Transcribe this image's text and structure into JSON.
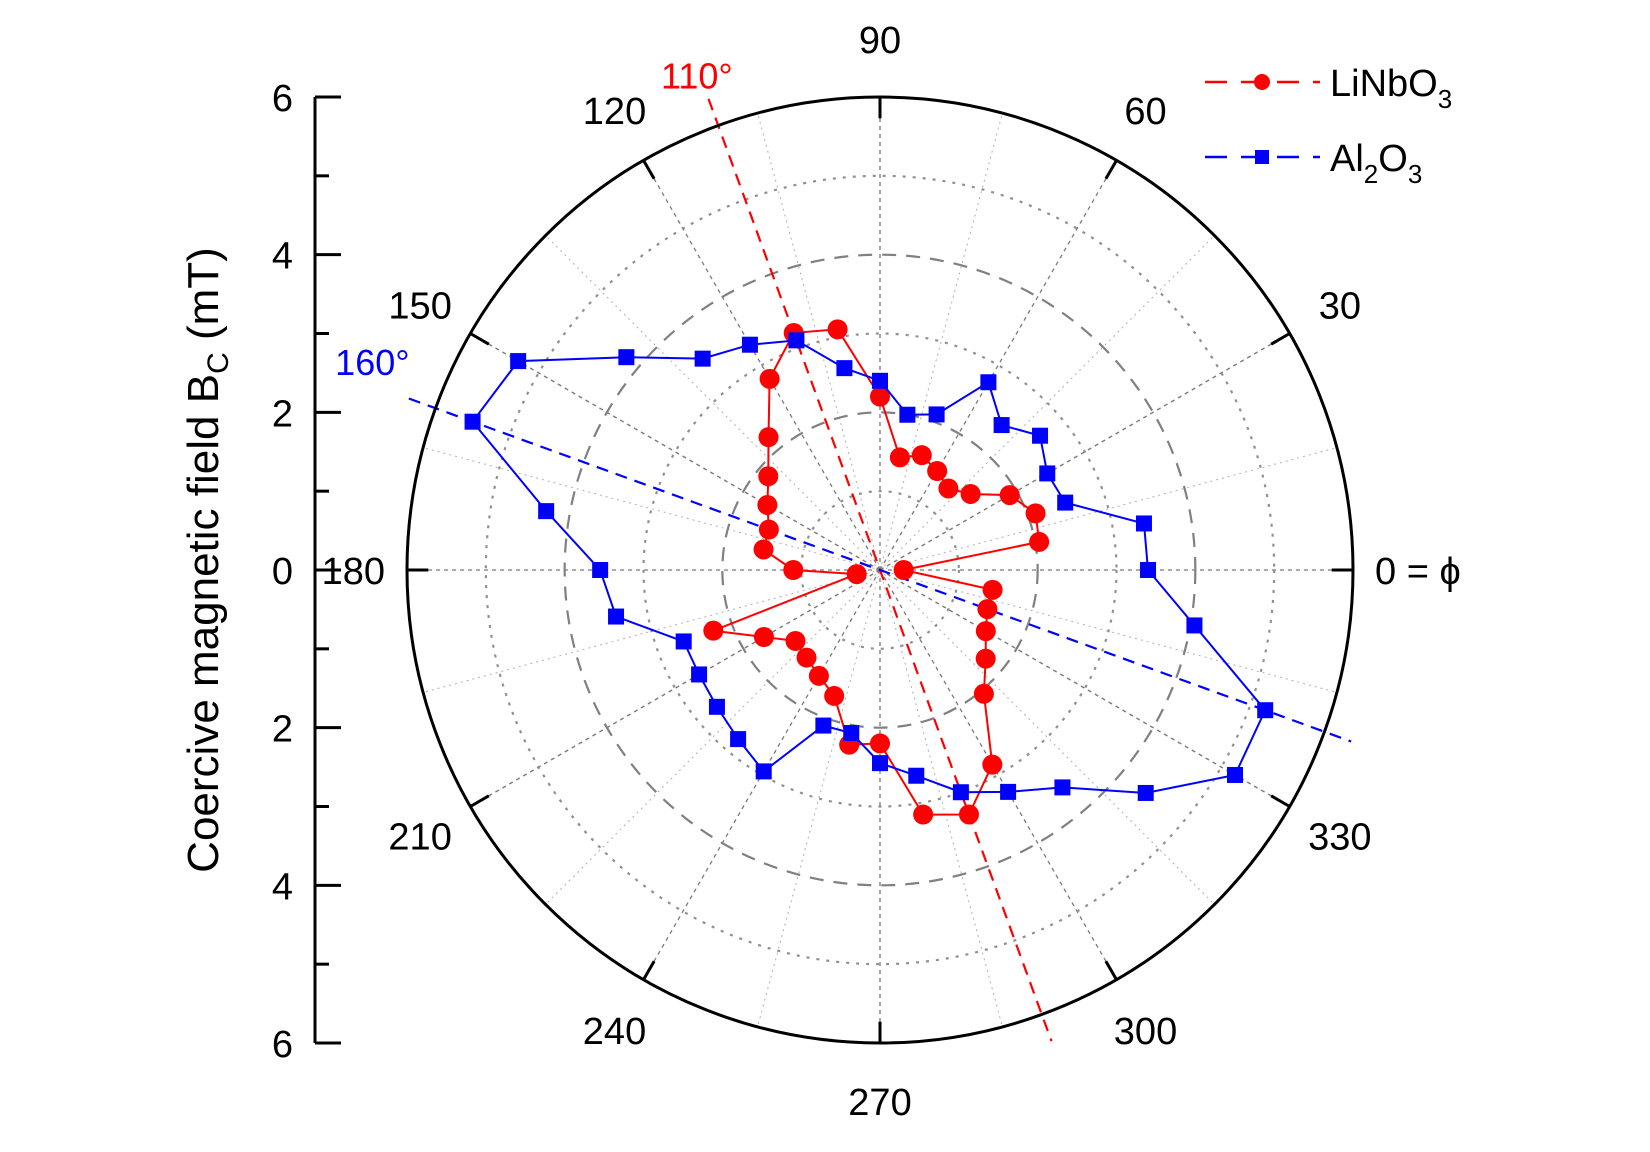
{
  "chart_data": {
    "type": "polar-scatter-line",
    "radial_axis": {
      "label_main": "Coercive magnetic field B",
      "label_sub": "C",
      "label_unit": " (mT)",
      "range": [
        0,
        6
      ],
      "ticks": [
        "6",
        "4",
        "2",
        "0",
        "2",
        "4",
        "6"
      ],
      "ring_values": [
        1,
        2,
        3,
        4,
        5
      ]
    },
    "angular_axis": {
      "labels": [
        {
          "angle": 0,
          "text": "0 = ϕ"
        },
        {
          "angle": 30,
          "text": "30"
        },
        {
          "angle": 60,
          "text": "60"
        },
        {
          "angle": 90,
          "text": "90"
        },
        {
          "angle": 120,
          "text": "120"
        },
        {
          "angle": 150,
          "text": "150"
        },
        {
          "angle": 180,
          "text": "180"
        },
        {
          "angle": 210,
          "text": "210"
        },
        {
          "angle": 240,
          "text": "240"
        },
        {
          "angle": 270,
          "text": "270"
        },
        {
          "angle": 300,
          "text": "300"
        },
        {
          "angle": 330,
          "text": "330"
        }
      ],
      "spoke_step_deg": 15
    },
    "grid": true,
    "legend": {
      "placement": "top-right",
      "entries": [
        {
          "main": "LiNbO",
          "sub": "3",
          "tail": "",
          "color": "#ff0000",
          "marker": "circle"
        },
        {
          "main": "Al",
          "sub": "2",
          "tail": "O",
          "sub2": "3",
          "color": "#0000ff",
          "marker": "square"
        }
      ]
    },
    "annotations": [
      {
        "text": "110°",
        "angle": 110,
        "color": "#ff0000"
      },
      {
        "text": "160°",
        "angle": 160,
        "color": "#0000ff"
      }
    ],
    "series": [
      {
        "name": "LiNbO3",
        "color": "#ff0000",
        "marker": "circle",
        "points": [
          [
            0,
            0.3
          ],
          [
            10,
            2.05
          ],
          [
            20,
            2.1
          ],
          [
            30,
            1.9
          ],
          [
            40,
            1.5
          ],
          [
            50,
            1.35
          ],
          [
            60,
            1.45
          ],
          [
            70,
            1.55
          ],
          [
            80,
            1.45
          ],
          [
            90,
            2.2
          ],
          [
            100,
            3.1
          ],
          [
            110,
            3.2
          ],
          [
            120,
            2.8
          ],
          [
            130,
            2.2
          ],
          [
            140,
            1.85
          ],
          [
            150,
            1.65
          ],
          [
            160,
            1.5
          ],
          [
            170,
            1.5
          ],
          [
            180,
            1.1
          ],
          [
            190,
            0.3
          ],
          [
            200,
            2.25
          ],
          [
            210,
            1.7
          ],
          [
            220,
            1.4
          ],
          [
            230,
            1.45
          ],
          [
            240,
            1.55
          ],
          [
            250,
            1.7
          ],
          [
            260,
            2.25
          ],
          [
            270,
            2.2
          ],
          [
            280,
            3.15
          ],
          [
            290,
            3.3
          ],
          [
            300,
            2.85
          ],
          [
            310,
            2.05
          ],
          [
            320,
            1.75
          ],
          [
            330,
            1.55
          ],
          [
            340,
            1.45
          ],
          [
            350,
            1.45
          ]
        ]
      },
      {
        "name": "Al2O3",
        "color": "#0000ff",
        "marker": "square",
        "points": [
          [
            0,
            3.4
          ],
          [
            10,
            3.4
          ],
          [
            20,
            2.5
          ],
          [
            30,
            2.45
          ],
          [
            40,
            2.65
          ],
          [
            50,
            2.4
          ],
          [
            60,
            2.75
          ],
          [
            70,
            2.1
          ],
          [
            80,
            2.0
          ],
          [
            90,
            2.4
          ],
          [
            100,
            2.6
          ],
          [
            110,
            3.1
          ],
          [
            120,
            3.3
          ],
          [
            130,
            3.5
          ],
          [
            140,
            4.2
          ],
          [
            150,
            5.3
          ],
          [
            160,
            5.5
          ],
          [
            170,
            4.3
          ],
          [
            180,
            3.55
          ],
          [
            190,
            3.4
          ],
          [
            200,
            2.65
          ],
          [
            210,
            2.65
          ],
          [
            220,
            2.7
          ],
          [
            230,
            2.8
          ],
          [
            240,
            2.95
          ],
          [
            250,
            2.1
          ],
          [
            260,
            2.1
          ],
          [
            270,
            2.45
          ],
          [
            280,
            2.65
          ],
          [
            290,
            3.0
          ],
          [
            300,
            3.25
          ],
          [
            310,
            3.6
          ],
          [
            320,
            4.4
          ],
          [
            330,
            5.2
          ],
          [
            340,
            5.2
          ],
          [
            350,
            4.05
          ]
        ]
      }
    ]
  }
}
